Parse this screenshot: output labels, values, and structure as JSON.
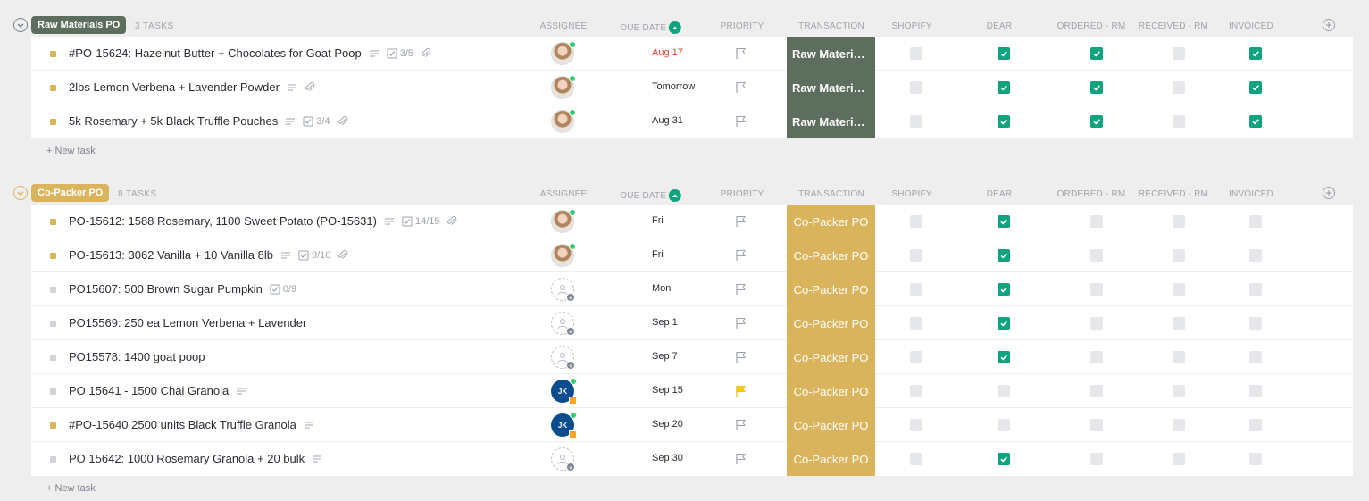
{
  "columns": [
    "ASSIGNEE",
    "DUE DATE",
    "PRIORITY",
    "TRANSACTION",
    "SHOPIFY",
    "DEAR",
    "ORDERED - RM",
    "RECEIVED - RM",
    "INVOICED"
  ],
  "new_task_label": "+ New task",
  "colors": {
    "raw_group": "#5e6e5e",
    "copacker_group": "#d9b45c",
    "check": "#10a37f",
    "overdue": "#e44332",
    "status_yellow": "#d8b559",
    "status_gray": "#d2d3d6",
    "flag_yellow": "#ffcc00"
  },
  "groups": [
    {
      "name": "Raw Materials PO",
      "count_label": "3 TASKS",
      "tasks": [
        {
          "name": "#PO-15624: Hazelnut Butter + Chocolates for Goat Poop",
          "status": "yellow",
          "desc": true,
          "checklist": "3/5",
          "attach": true,
          "assignee": "photo",
          "initials": "",
          "due": "Aug 17",
          "due_overdue": true,
          "priority": "none",
          "transaction": "Raw Material...",
          "shopify": false,
          "dear": true,
          "ordered": true,
          "received": false,
          "invoiced": true
        },
        {
          "name": "2lbs Lemon Verbena + Lavender Powder",
          "status": "yellow",
          "desc": true,
          "checklist": "",
          "attach": true,
          "assignee": "photo",
          "initials": "",
          "due": "Tomorrow",
          "due_overdue": false,
          "priority": "none",
          "transaction": "Raw Material...",
          "shopify": false,
          "dear": true,
          "ordered": true,
          "received": false,
          "invoiced": true
        },
        {
          "name": "5k Rosemary + 5k Black Truffle Pouches",
          "status": "yellow",
          "desc": true,
          "checklist": "3/4",
          "attach": true,
          "assignee": "photo",
          "initials": "",
          "due": "Aug 31",
          "due_overdue": false,
          "priority": "none",
          "transaction": "Raw Material...",
          "shopify": false,
          "dear": true,
          "ordered": true,
          "received": false,
          "invoiced": true
        }
      ]
    },
    {
      "name": "Co-Packer PO",
      "count_label": "8 TASKS",
      "tasks": [
        {
          "name": "PO-15612: 1588 Rosemary, 1100 Sweet Potato (PO-15631)",
          "status": "yellow",
          "desc": true,
          "checklist": "14/15",
          "attach": true,
          "assignee": "photo",
          "initials": "",
          "due": "Fri",
          "due_overdue": false,
          "priority": "none",
          "transaction": "Co-Packer PO",
          "shopify": false,
          "dear": true,
          "ordered": false,
          "received": false,
          "invoiced": false
        },
        {
          "name": "PO-15613: 3062 Vanilla + 10 Vanilla 8lb",
          "status": "yellow",
          "desc": true,
          "checklist": "9/10",
          "attach": true,
          "assignee": "photo",
          "initials": "",
          "due": "Fri",
          "due_overdue": false,
          "priority": "none",
          "transaction": "Co-Packer PO",
          "shopify": false,
          "dear": true,
          "ordered": false,
          "received": false,
          "invoiced": false
        },
        {
          "name": "PO15607: 500 Brown Sugar Pumpkin",
          "status": "gray",
          "desc": false,
          "checklist": "0/9",
          "attach": false,
          "assignee": "empty",
          "initials": "",
          "due": "Mon",
          "due_overdue": false,
          "priority": "none",
          "transaction": "Co-Packer PO",
          "shopify": false,
          "dear": true,
          "ordered": false,
          "received": false,
          "invoiced": false
        },
        {
          "name": "PO15569: 250 ea Lemon Verbena + Lavender",
          "status": "gray",
          "desc": false,
          "checklist": "",
          "attach": false,
          "assignee": "empty",
          "initials": "",
          "due": "Sep 1",
          "due_overdue": false,
          "priority": "none",
          "transaction": "Co-Packer PO",
          "shopify": false,
          "dear": true,
          "ordered": false,
          "received": false,
          "invoiced": false
        },
        {
          "name": "PO15578: 1400 goat poop",
          "status": "gray",
          "desc": false,
          "checklist": "",
          "attach": false,
          "assignee": "empty",
          "initials": "",
          "due": "Sep 7",
          "due_overdue": false,
          "priority": "none",
          "transaction": "Co-Packer PO",
          "shopify": false,
          "dear": true,
          "ordered": false,
          "received": false,
          "invoiced": false
        },
        {
          "name": "PO 15641 - 1500 Chai Granola",
          "status": "gray",
          "desc": true,
          "checklist": "",
          "attach": false,
          "assignee": "initials",
          "initials": "JK",
          "due": "Sep 15",
          "due_overdue": false,
          "priority": "yellow",
          "transaction": "Co-Packer PO",
          "shopify": false,
          "dear": false,
          "ordered": false,
          "received": false,
          "invoiced": false
        },
        {
          "name": "#PO-15640 2500 units Black Truffle Granola",
          "status": "yellow",
          "desc": true,
          "checklist": "",
          "attach": false,
          "assignee": "initials",
          "initials": "JK",
          "due": "Sep 20",
          "due_overdue": false,
          "priority": "none",
          "transaction": "Co-Packer PO",
          "shopify": false,
          "dear": false,
          "ordered": false,
          "received": false,
          "invoiced": false
        },
        {
          "name": "PO 15642: 1000 Rosemary Granola + 20 bulk",
          "status": "gray",
          "desc": true,
          "checklist": "",
          "attach": false,
          "assignee": "empty",
          "initials": "",
          "due": "Sep 30",
          "due_overdue": false,
          "priority": "none",
          "transaction": "Co-Packer PO",
          "shopify": false,
          "dear": true,
          "ordered": false,
          "received": false,
          "invoiced": false
        }
      ]
    }
  ]
}
